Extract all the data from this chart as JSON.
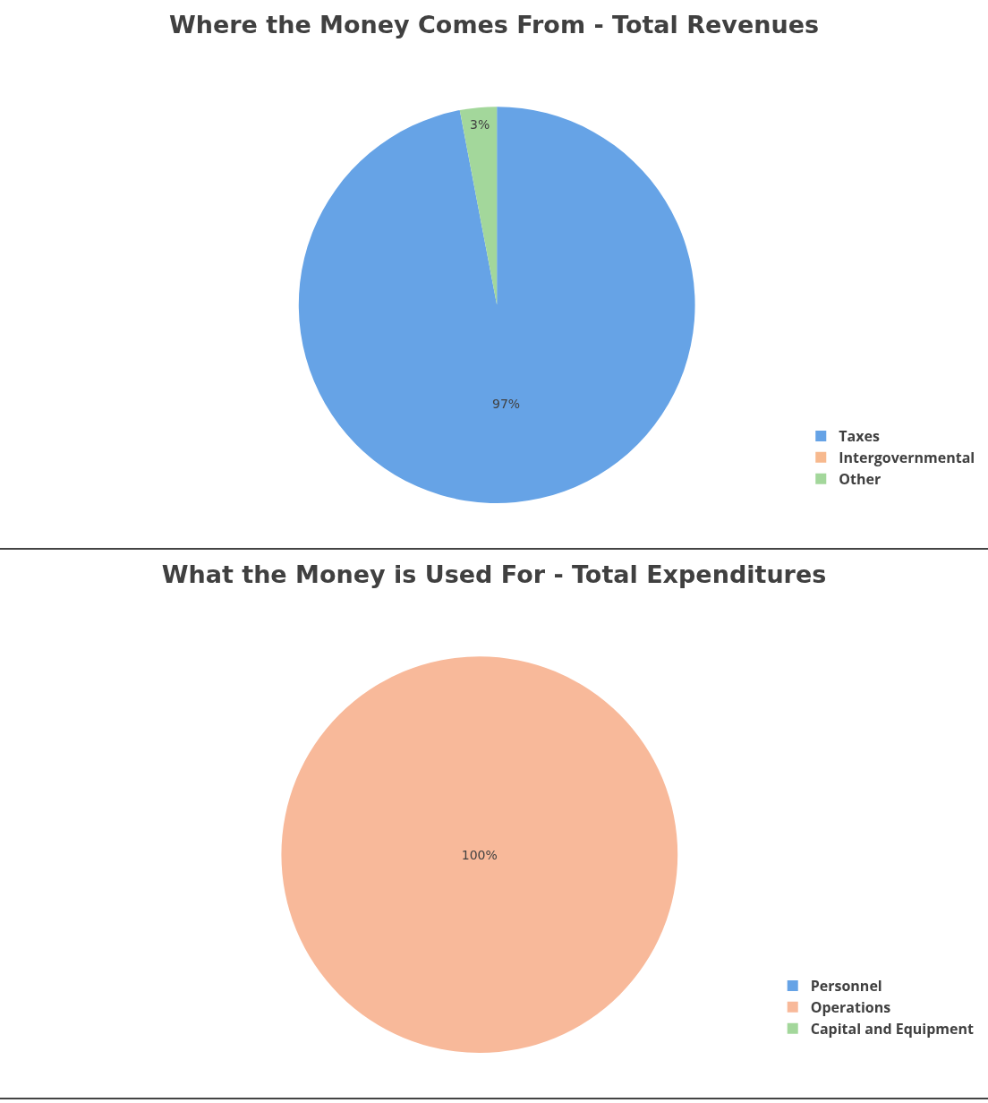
{
  "chart_data": [
    {
      "type": "pie",
      "title": "Where the Money Comes From - Total Revenues",
      "categories": [
        "Taxes",
        "Intergovernmental",
        "Other"
      ],
      "values": [
        97,
        0,
        3
      ],
      "value_labels": [
        "97%",
        null,
        "3%"
      ],
      "colors": [
        "#66a3e6",
        "#f7b98e",
        "#a3d79b"
      ],
      "legend": "bottom right"
    },
    {
      "type": "pie",
      "title": "What the Money is Used For - Total Expenditures",
      "categories": [
        "Personnel",
        "Operations",
        "Capital and Equipment"
      ],
      "values": [
        0,
        100,
        0
      ],
      "value_labels": [
        null,
        "100%",
        null
      ],
      "colors": [
        "#66a3e6",
        "#f8b99a",
        "#a3d79b"
      ],
      "legend": "bottom right"
    }
  ]
}
